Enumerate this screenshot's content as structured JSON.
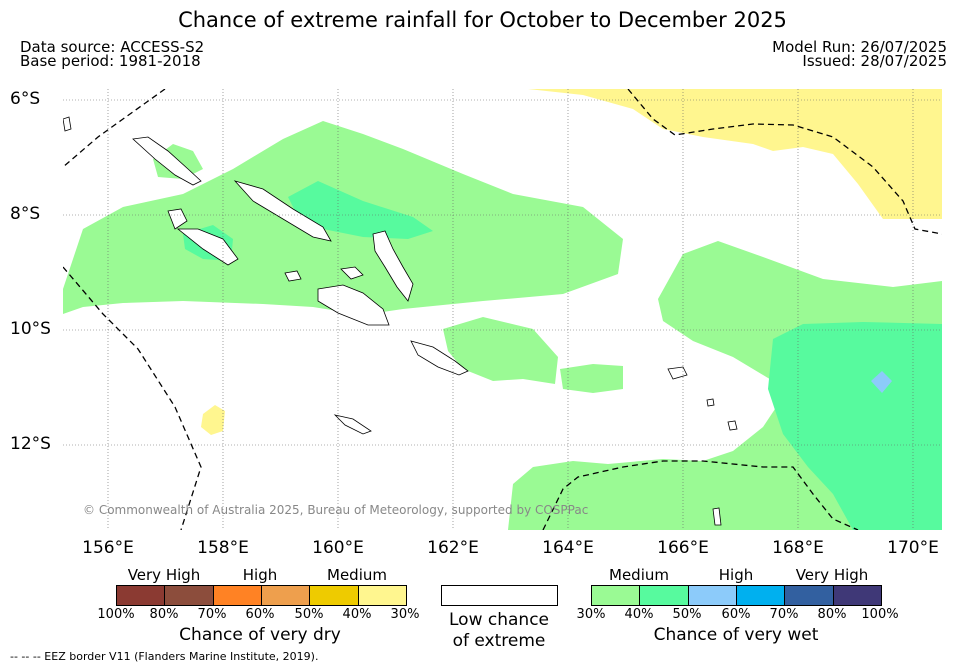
{
  "title": "Chance of extreme rainfall for October to December 2025",
  "meta": {
    "data_source": "Data source: ACCESS-S2",
    "base_period": "Base period: 1981-2018",
    "model_run": "Model Run: 26/07/2025",
    "issued": "Issued: 28/07/2025"
  },
  "map": {
    "lat_labels": [
      "6°S",
      "8°S",
      "10°S",
      "12°S"
    ],
    "lon_labels": [
      "156°E",
      "158°E",
      "160°E",
      "162°E",
      "164°E",
      "166°E",
      "168°E",
      "170°E"
    ],
    "copyright": "© Commonwealth of Australia 2025, Bureau of Meteorology, supported by COSPPac",
    "colors": {
      "dry_medium": "#fff68f",
      "wet_medium": "#9afa94",
      "wet_high": "#57fa9e",
      "wet_high_50_60": "#8ccbfa",
      "eez": "#000000"
    }
  },
  "legend": {
    "dry": {
      "categories": [
        "Very High",
        "High",
        "Medium"
      ],
      "swatches": [
        "#8b3a32",
        "#8c4d3c",
        "#ff8224",
        "#ee9f4d",
        "#eecb00",
        "#fff68f"
      ],
      "ticks": [
        "100%",
        "80%",
        "70%",
        "60%",
        "50%",
        "40%",
        "30%"
      ],
      "title": "Chance of very dry"
    },
    "low": {
      "line1": "Low chance",
      "line2": "of extreme"
    },
    "wet": {
      "categories": [
        "Medium",
        "High",
        "Very High"
      ],
      "swatches": [
        "#9afa94",
        "#57fa9e",
        "#8ccbfa",
        "#00b0ef",
        "#3260a0",
        "#3f3877"
      ],
      "ticks": [
        "30%",
        "40%",
        "50%",
        "60%",
        "70%",
        "80%",
        "100%"
      ],
      "title": "Chance of very wet"
    }
  },
  "footnote": "--  --  -- EEZ border V11 (Flanders Marine Institute, 2019)."
}
